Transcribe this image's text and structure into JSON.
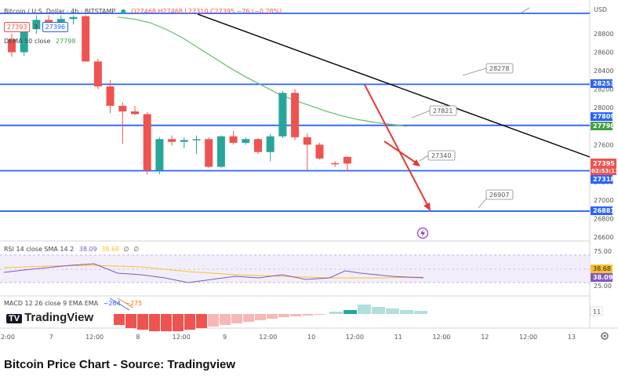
{
  "header": {
    "symbol": "Bitcoin / U.S. Dollar · 4h · BITSTAMP",
    "ohlc": "O27468 H27468 L27310 C27395 −76 (−0.28%)",
    "sell_price": "27393",
    "spread": "3",
    "buy_price": "27396",
    "dema_label": "DEMA 50 close",
    "dema_value": "27798"
  },
  "axis": {
    "currency": "USD",
    "price_ticks": [
      "28800",
      "28600",
      "28400",
      "28200",
      "28000",
      "27800",
      "27600",
      "27400",
      "27200",
      "27000",
      "26800",
      "26600"
    ],
    "time_ticks": [
      "2:00",
      "7",
      "12:00",
      "8",
      "12:00",
      "9",
      "12:00",
      "10",
      "12:00",
      "11",
      "12:00",
      "12",
      "12:00",
      "13"
    ]
  },
  "price_labels": {
    "l28253": "28253",
    "l27809": "27809",
    "l27798": "27798",
    "l27395": "27395",
    "countdown": "02:53:11",
    "l27318": "27318",
    "l26881": "26881"
  },
  "callouts": {
    "c28278": "28278",
    "c27821": "27821",
    "c27340": "27340",
    "c26907": "26907"
  },
  "rsi": {
    "label": "RSI 14 close SMA 14 2",
    "v1": "38.09",
    "v2": "38.68",
    "v3": "∅",
    "v4": "∅",
    "tick75": "75.00",
    "tick25": "25.00",
    "val_a": "38.68",
    "val_b": "38.09"
  },
  "macd": {
    "label": "MACD 12 26 close 9 EMA EMA",
    "v1": "−264",
    "v2": "−275",
    "tick": "11"
  },
  "logo": "TradingView",
  "caption": "Bitcoin Price Chart - Source: Tradingview",
  "colors": {
    "up": "#26a69a",
    "down": "#ef5350",
    "level": "#2962ff",
    "dema": "#66bb6a",
    "trend": "#000000",
    "arrow": "#e53935"
  },
  "chart_data": {
    "type": "candlestick",
    "timeframe": "4h",
    "ylim": [
      26500,
      29000
    ],
    "candles": [
      {
        "o": 28740,
        "h": 28800,
        "l": 28550,
        "c": 28600
      },
      {
        "o": 28600,
        "h": 28900,
        "l": 28560,
        "c": 28850
      },
      {
        "o": 28850,
        "h": 29000,
        "l": 28800,
        "c": 28950
      },
      {
        "o": 28950,
        "h": 29000,
        "l": 28850,
        "c": 28900
      },
      {
        "o": 28900,
        "h": 29000,
        "l": 28880,
        "c": 28960
      },
      {
        "o": 28960,
        "h": 29000,
        "l": 28900,
        "c": 28980
      },
      {
        "o": 28990,
        "h": 29000,
        "l": 28500,
        "c": 28500
      },
      {
        "o": 28500,
        "h": 28530,
        "l": 28200,
        "c": 28230
      },
      {
        "o": 28230,
        "h": 28300,
        "l": 27940,
        "c": 28020
      },
      {
        "o": 28020,
        "h": 28060,
        "l": 27610,
        "c": 27960
      },
      {
        "o": 27960,
        "h": 28020,
        "l": 27920,
        "c": 27930
      },
      {
        "o": 27930,
        "h": 27950,
        "l": 27280,
        "c": 27320
      },
      {
        "o": 27320,
        "h": 27680,
        "l": 27280,
        "c": 27660
      },
      {
        "o": 27660,
        "h": 27700,
        "l": 27590,
        "c": 27630
      },
      {
        "o": 27630,
        "h": 27680,
        "l": 27560,
        "c": 27650
      },
      {
        "o": 27650,
        "h": 27700,
        "l": 27500,
        "c": 27660
      },
      {
        "o": 27660,
        "h": 27680,
        "l": 27350,
        "c": 27360
      },
      {
        "o": 27360,
        "h": 27700,
        "l": 27350,
        "c": 27690
      },
      {
        "o": 27690,
        "h": 27750,
        "l": 27600,
        "c": 27620
      },
      {
        "o": 27620,
        "h": 27680,
        "l": 27600,
        "c": 27660
      },
      {
        "o": 27660,
        "h": 27670,
        "l": 27500,
        "c": 27520
      },
      {
        "o": 27520,
        "h": 27720,
        "l": 27420,
        "c": 27690
      },
      {
        "o": 27690,
        "h": 28180,
        "l": 27670,
        "c": 28160
      },
      {
        "o": 28160,
        "h": 28200,
        "l": 27650,
        "c": 27680
      },
      {
        "o": 27680,
        "h": 27720,
        "l": 27310,
        "c": 27600
      },
      {
        "o": 27600,
        "h": 27620,
        "l": 27440,
        "c": 27450
      },
      {
        "o": 27400,
        "h": 27420,
        "l": 27360,
        "c": 27390
      },
      {
        "o": 27468,
        "h": 27468,
        "l": 27310,
        "c": 27395
      }
    ],
    "horizontal_levels": [
      28253,
      27809,
      27318,
      26881,
      28960
    ],
    "dema_50": [
      28980,
      28960,
      28920,
      28850,
      28760,
      28650,
      28540,
      28430,
      28330,
      28240,
      28150,
      28080,
      28020,
      27960,
      27910,
      27870,
      27840,
      27820,
      27798
    ],
    "annotations": [
      {
        "text": "28278",
        "value": 28278
      },
      {
        "text": "27821",
        "value": 27821
      },
      {
        "text": "27340",
        "value": 27340
      },
      {
        "text": "26907",
        "value": 26907
      }
    ],
    "rsi": {
      "sma": 38.68,
      "value": 38.09,
      "bands": [
        25,
        75
      ]
    },
    "macd": {
      "macd": -264,
      "signal": -275
    }
  }
}
